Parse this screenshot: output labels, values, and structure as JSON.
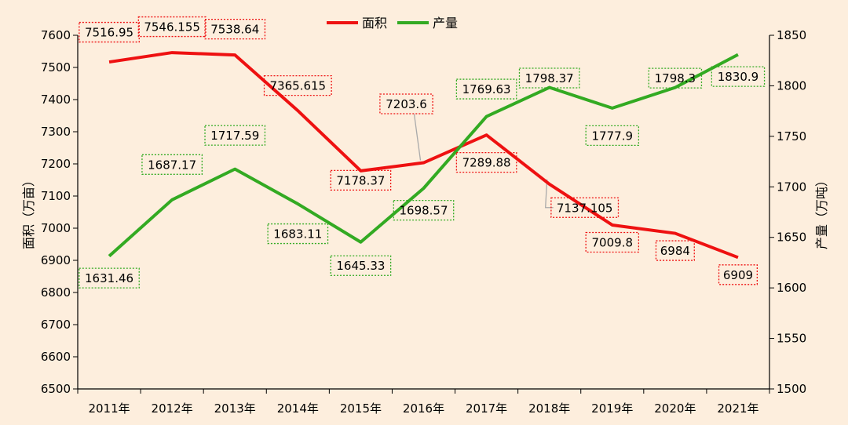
{
  "colors": {
    "background": "#fdeedd",
    "area_series": "#ee1111",
    "yield_series": "#33aa22",
    "area_label_border": "#ee1111",
    "yield_label_border": "#33aa22",
    "axis": "#000000",
    "leader_line": "#aaaaaa"
  },
  "chart_data": {
    "type": "line",
    "categories": [
      "2011年",
      "2012年",
      "2013年",
      "2014年",
      "2015年",
      "2016年",
      "2017年",
      "2018年",
      "2019年",
      "2020年",
      "2021年"
    ],
    "series": [
      {
        "name": "面积",
        "axis": "left",
        "values": [
          7516.95,
          7546.155,
          7538.64,
          7365.615,
          7178.37,
          7203.6,
          7289.88,
          7137.105,
          7009.8,
          6984,
          6909
        ],
        "labels": [
          "7516.95",
          "7546.155",
          "7538.64",
          "7365.615",
          "7178.37",
          "7203.6",
          "7289.88",
          "7137.105",
          "7009.8",
          "6984",
          "6909"
        ]
      },
      {
        "name": "产量",
        "axis": "right",
        "values": [
          1631.46,
          1687.17,
          1717.59,
          1683.11,
          1645.33,
          1698.57,
          1769.63,
          1798.37,
          1777.9,
          1798.3,
          1830.9
        ],
        "labels": [
          "1631.46",
          "1687.17",
          "1717.59",
          "1683.11",
          "1645.33",
          "1698.57",
          "1769.63",
          "1798.37",
          "1777.9",
          "1798.3",
          "1830.9"
        ]
      }
    ],
    "y_left": {
      "label": "面积（万亩）",
      "ylim": [
        6500,
        7600
      ],
      "ticks": [
        "6500",
        "6600",
        "6700",
        "6800",
        "6900",
        "7000",
        "7100",
        "7200",
        "7300",
        "7400",
        "7500",
        "7600"
      ]
    },
    "y_right": {
      "label": "产量（万吨）",
      "ylim": [
        1500,
        1850
      ],
      "ticks": [
        "1500",
        "1550",
        "1600",
        "1650",
        "1700",
        "1750",
        "1800",
        "1850"
      ]
    },
    "legend": [
      "面积",
      "产量"
    ],
    "legend_position": "top-center",
    "grid": false
  }
}
